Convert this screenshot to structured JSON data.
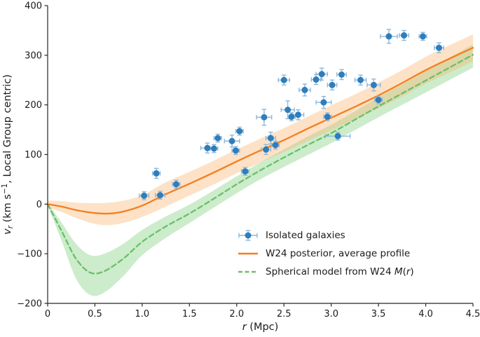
{
  "figure": {
    "background": "#ffffff"
  },
  "legend": {
    "items": [
      {
        "key": "isolated-galaxies",
        "segments": [
          {
            "t": "Isolated galaxies"
          }
        ]
      },
      {
        "key": "w24-posterior",
        "segments": [
          {
            "t": "W24 posterior, average profile"
          }
        ]
      },
      {
        "key": "spherical-model",
        "segments": [
          {
            "t": "Spherical model from W24 "
          },
          {
            "t": "M",
            "i": true
          },
          {
            "t": "("
          },
          {
            "t": "r",
            "i": true
          },
          {
            "t": ")"
          }
        ]
      }
    ]
  },
  "chart_data": {
    "type": "scatter+line",
    "title": "",
    "xlabel_segments": [
      {
        "t": "r",
        "i": true
      },
      {
        "t": " (Mpc)"
      }
    ],
    "ylabel_segments": [
      {
        "t": "v",
        "i": true
      },
      {
        "t": "r",
        "i": true,
        "sub": true
      },
      {
        "t": " (km s"
      },
      {
        "t": "−1",
        "sup": true
      },
      {
        "t": ", Local Group centric)"
      }
    ],
    "xlim": [
      0,
      4.5
    ],
    "ylim": [
      -200,
      400
    ],
    "xticks": [
      0,
      0.5,
      1,
      1.5,
      2,
      2.5,
      3,
      3.5,
      4,
      4.5
    ],
    "xtick_labels": [
      "0",
      "0.5",
      "1.0",
      "1.5",
      "2.0",
      "2.5",
      "3.0",
      "3.5",
      "4.0",
      "4.5"
    ],
    "yticks": [
      -200,
      -100,
      0,
      100,
      200,
      300,
      400
    ],
    "ytick_labels": [
      "−200",
      "−100",
      "0",
      "100",
      "200",
      "300",
      "400"
    ],
    "grid": false,
    "legend_position": "lower right",
    "colors": {
      "axis": "#262626",
      "text": "#1a1a1a"
    },
    "series": [
      {
        "key": "isolated-galaxies",
        "name": "Isolated galaxies",
        "type": "scatter",
        "color": "#2e7ebc",
        "err_color": "#8cb8dc",
        "marker_size": 4.5,
        "points": [
          [
            1.02,
            17,
            0.05,
            8
          ],
          [
            1.15,
            62,
            0.04,
            10
          ],
          [
            1.19,
            18,
            0.05,
            8
          ],
          [
            1.36,
            40,
            0.04,
            8
          ],
          [
            1.69,
            113,
            0.07,
            10
          ],
          [
            1.76,
            112,
            0.04,
            8
          ],
          [
            1.8,
            133,
            0.04,
            8
          ],
          [
            1.95,
            127,
            0.08,
            12
          ],
          [
            1.99,
            108,
            0.04,
            8
          ],
          [
            2.03,
            147,
            0.04,
            8
          ],
          [
            2.09,
            66,
            0.04,
            8
          ],
          [
            2.29,
            175,
            0.08,
            16
          ],
          [
            2.31,
            110,
            0.05,
            10
          ],
          [
            2.36,
            133,
            0.05,
            12
          ],
          [
            2.41,
            119,
            0.04,
            8
          ],
          [
            2.5,
            250,
            0.06,
            10
          ],
          [
            2.54,
            190,
            0.07,
            18
          ],
          [
            2.58,
            176,
            0.04,
            8
          ],
          [
            2.65,
            180,
            0.06,
            10
          ],
          [
            2.72,
            230,
            0.06,
            12
          ],
          [
            2.84,
            251,
            0.05,
            10
          ],
          [
            2.9,
            262,
            0.06,
            12
          ],
          [
            2.92,
            205,
            0.08,
            12
          ],
          [
            2.96,
            176,
            0.04,
            8
          ],
          [
            3.01,
            240,
            0.05,
            10
          ],
          [
            3.07,
            137,
            0.13,
            8
          ],
          [
            3.11,
            261,
            0.05,
            10
          ],
          [
            3.31,
            250,
            0.06,
            10
          ],
          [
            3.45,
            240,
            0.07,
            12
          ],
          [
            3.5,
            210,
            0.04,
            8
          ],
          [
            3.61,
            338,
            0.09,
            14
          ],
          [
            3.77,
            340,
            0.05,
            10
          ],
          [
            3.97,
            338,
            0.04,
            8
          ],
          [
            4.14,
            315,
            0.05,
            10
          ]
        ]
      },
      {
        "key": "w24-posterior",
        "name": "W24 posterior, average profile",
        "type": "band-line",
        "line_style": "solid",
        "color": "#f57e20",
        "band_color": "#f9b26b",
        "band_opacity": 0.38,
        "x": [
          0,
          0.15,
          0.3,
          0.5,
          0.65,
          0.8,
          1.0,
          1.25,
          1.5,
          1.75,
          2.0,
          2.25,
          2.5,
          2.75,
          3.0,
          3.25,
          3.5,
          3.75,
          4.0,
          4.25,
          4.5
        ],
        "y": [
          0,
          -5,
          -12,
          -18,
          -19,
          -15,
          -3,
          20,
          41,
          63,
          86,
          108,
          129,
          152,
          174,
          196,
          219,
          244,
          270,
          293,
          315
        ],
        "lo": [
          -7,
          -16,
          -28,
          -40,
          -42,
          -38,
          -26,
          -5,
          17,
          39,
          62,
          84,
          105,
          127,
          149,
          171,
          193,
          217,
          243,
          265,
          288
        ],
        "hi": [
          7,
          6,
          3,
          2,
          3,
          7,
          18,
          44,
          65,
          87,
          110,
          132,
          153,
          176,
          199,
          221,
          245,
          270,
          297,
          320,
          342
        ]
      },
      {
        "key": "spherical-model",
        "name": "Spherical model from W24 M(r)",
        "type": "band-line",
        "line_style": "dashed",
        "color": "#6abf69",
        "band_color": "#8ed48b",
        "band_opacity": 0.45,
        "x": [
          0,
          0.15,
          0.3,
          0.45,
          0.6,
          0.8,
          1.0,
          1.25,
          1.5,
          1.75,
          2.0,
          2.25,
          2.5,
          2.75,
          3.0,
          3.25,
          3.5,
          3.75,
          4.0,
          4.25,
          4.5
        ],
        "y": [
          0,
          -55,
          -110,
          -138,
          -135,
          -110,
          -76,
          -45,
          -19,
          10,
          40,
          68,
          94,
          119,
          143,
          170,
          197,
          223,
          249,
          275,
          301
        ],
        "lo": [
          -2,
          -75,
          -150,
          -183,
          -178,
          -145,
          -103,
          -68,
          -38,
          -8,
          22,
          50,
          75,
          99,
          123,
          149,
          175,
          200,
          225,
          250,
          275
        ],
        "hi": [
          2,
          -38,
          -80,
          -103,
          -100,
          -80,
          -52,
          -25,
          -1,
          27,
          56,
          84,
          110,
          136,
          160,
          187,
          215,
          241,
          268,
          295,
          322
        ]
      }
    ]
  }
}
